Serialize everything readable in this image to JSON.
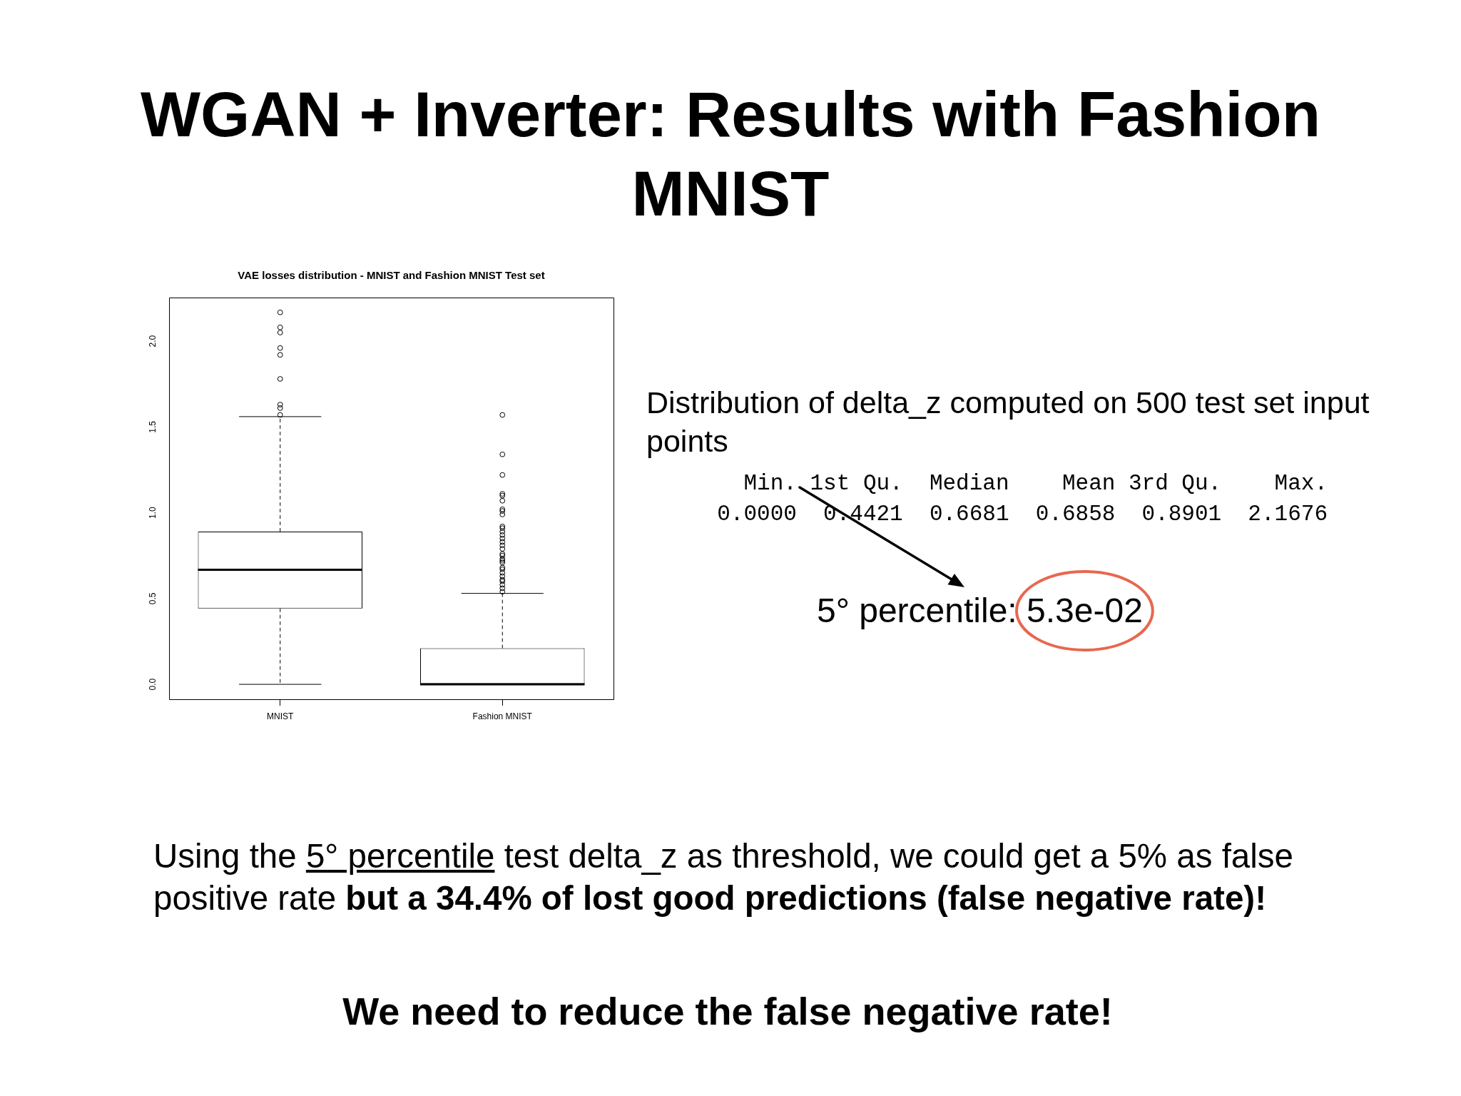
{
  "chart_data": {
    "type": "box",
    "title": "VAE losses distribution - MNIST and Fashion MNIST Test set",
    "categories": [
      "MNIST",
      "Fashion MNIST"
    ],
    "boxes": [
      {
        "low": 0,
        "q1": 0.4421,
        "median": 0.6681,
        "q3": 0.8901,
        "high": 1.56,
        "outliers": [
          2.1676,
          2.08,
          2.05,
          1.96,
          1.92,
          1.78,
          1.63,
          1.61,
          1.57
        ]
      },
      {
        "low": 0,
        "q1": 0,
        "median": 0,
        "q3": 0.21,
        "high": 0.53,
        "outliers": [
          1.57,
          1.34,
          1.22,
          1.11,
          1.1,
          1.07,
          1.02,
          1.01,
          0.99,
          0.92,
          0.91,
          0.89,
          0.87,
          0.85,
          0.83,
          0.81,
          0.79,
          0.76,
          0.75,
          0.73,
          0.72,
          0.71,
          0.68,
          0.67,
          0.65,
          0.63,
          0.61,
          0.6,
          0.58,
          0.56,
          0.54
        ]
      }
    ],
    "ylim": [
      -0.087,
      2.254
    ],
    "yticks": [
      {
        "value": 0,
        "label": "0.0"
      },
      {
        "value": 0.5,
        "label": "0.5"
      },
      {
        "value": 1,
        "label": "1.0"
      },
      {
        "value": 1.5,
        "label": "1.5"
      },
      {
        "value": 2,
        "label": "2.0"
      }
    ],
    "grid": false,
    "legend": false,
    "marker": "circle",
    "annotations": [
      "WGAN + Inverter: Results with Fashion MNIST",
      "Distribution of delta_z computed on 500 test set input points",
      "   Min. 1st Qu.  Median    Mean 3rd Qu.    Max.",
      "0.0000  0.4421  0.6681  0.6858  0.8901  2.1676",
      "5° percentile: 5.3e-02",
      "Using the",
      "5° percentile",
      "test delta_z as threshold, we could get a 5% as false",
      "positive rate",
      "but a 34.4% of lost good predictions (false negative rate)!",
      "We need to reduce the false negative rate!"
    ]
  }
}
